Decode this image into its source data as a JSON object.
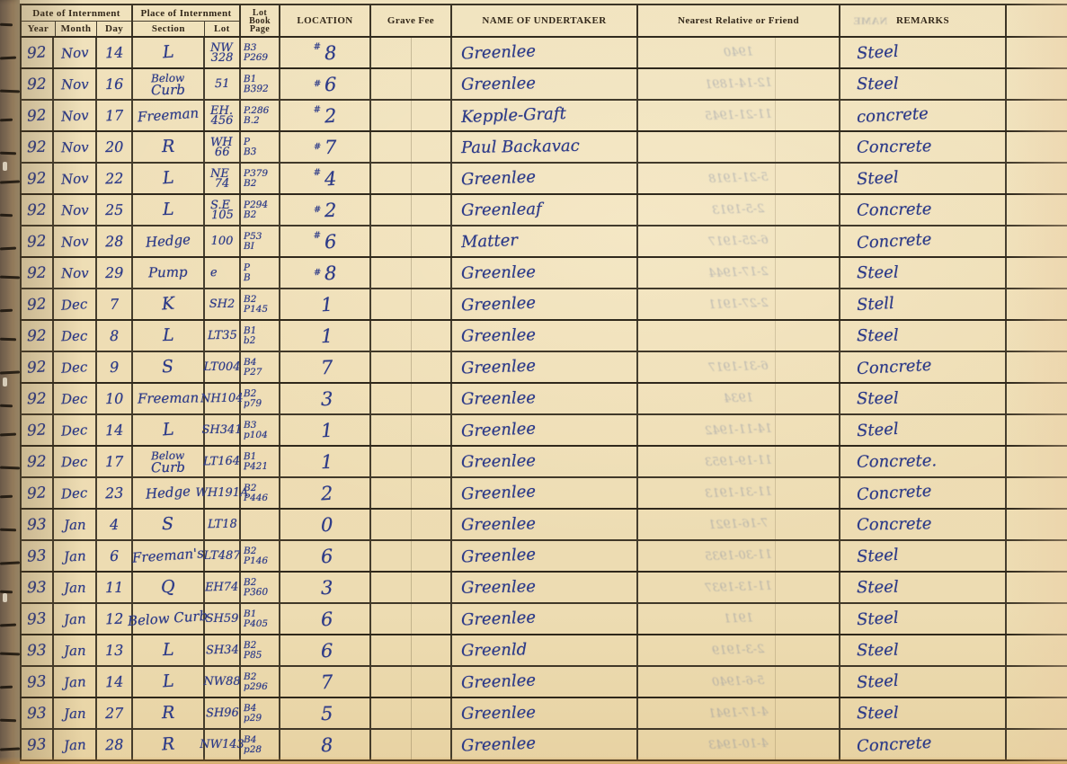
{
  "header": {
    "date_group": "Date of Internment",
    "year": "Year",
    "month": "Month",
    "day": "Day",
    "place_group": "Place of Internment",
    "section": "Section",
    "lot": "Lot",
    "lot_book_page": [
      "Lot",
      "Book",
      "Page"
    ],
    "location": "LOCATION",
    "grave_fee": "Grave Fee",
    "undertaker": "NAME OF UNDERTAKER",
    "relative": "Nearest Relative or Friend",
    "remarks": "REMARKS",
    "bleed_name": "NAME"
  },
  "ink_color": "#2c3a88",
  "paper_color": "#eeddb4",
  "rows": [
    {
      "year": "92",
      "month": "Nov",
      "day": "14",
      "section_top": "",
      "section": "L",
      "lot_top": "NW",
      "lot": "328",
      "book_top": "B3",
      "book": "P269",
      "loc_mark": "#",
      "location": "8",
      "undertaker": "Greenlee",
      "remarks": "Steel",
      "bleed": "1940"
    },
    {
      "year": "92",
      "month": "Nov",
      "day": "16",
      "section_top": "Below",
      "section": "Curb",
      "lot_top": "",
      "lot": "51",
      "book_top": "B1",
      "book": "B392",
      "loc_mark": "#",
      "location": "6",
      "undertaker": "Greenlee",
      "remarks": "Steel",
      "bleed": "12-14-1891"
    },
    {
      "year": "92",
      "month": "Nov",
      "day": "17",
      "section_top": "",
      "section": "Freeman",
      "lot_top": "EH.",
      "lot": "456",
      "book_top": "P.286",
      "book": "B.2",
      "loc_mark": "#",
      "location": "2",
      "undertaker": "Kepple-Graft",
      "remarks": "concrete",
      "bleed": "11-21-1945"
    },
    {
      "year": "92",
      "month": "Nov",
      "day": "20",
      "section_top": "",
      "section": "R",
      "lot_top": "WH",
      "lot": "66",
      "book_top": "P",
      "book": "B3",
      "loc_mark": "#",
      "location": "7",
      "undertaker": "Paul Backavac",
      "remarks": "Concrete",
      "bleed": ""
    },
    {
      "year": "92",
      "month": "Nov",
      "day": "22",
      "section_top": "",
      "section": "L",
      "lot_top": "NE",
      "lot": "74",
      "book_top": "P379",
      "book": "B2",
      "loc_mark": "#",
      "location": "4",
      "undertaker": "Greenlee",
      "remarks": "Steel",
      "bleed": "5-21-1918"
    },
    {
      "year": "92",
      "month": "Nov",
      "day": "25",
      "section_top": "",
      "section": "L",
      "lot_top": "S.E",
      "lot": "105",
      "book_top": "P294",
      "book": "B2",
      "loc_mark": "#",
      "location": "2",
      "undertaker": "Greenleaf",
      "remarks": "Concrete",
      "bleed": "2-5-1913"
    },
    {
      "year": "92",
      "month": "Nov",
      "day": "28",
      "section_top": "",
      "section": "Hedge",
      "lot_top": "",
      "lot": "100",
      "book_top": "P53",
      "book": "BI",
      "loc_mark": "#",
      "location": "6",
      "undertaker": "Matter",
      "remarks": "Concrete",
      "bleed": "6-25-1917"
    },
    {
      "year": "92",
      "month": "Nov",
      "day": "29",
      "section_top": "",
      "section": "Pump",
      "lot_top": "e",
      "lot": "",
      "book_top": "P",
      "book": "B",
      "loc_mark": "#",
      "location": "8",
      "undertaker": "Greenlee",
      "remarks": "Steel",
      "bleed": "2-17-1944"
    },
    {
      "year": "92",
      "month": "Dec",
      "day": "7",
      "section_top": "",
      "section": "K",
      "lot_top": "",
      "lot": "SH2",
      "book_top": "B2",
      "book": "P145",
      "loc_mark": "",
      "location": "1",
      "undertaker": "Greenlee",
      "remarks": "Stell",
      "bleed": "2-27-1911"
    },
    {
      "year": "92",
      "month": "Dec",
      "day": "8",
      "section_top": "",
      "section": "L",
      "lot_top": "",
      "lot": "LT35",
      "book_top": "B1",
      "book": "b2",
      "loc_mark": "",
      "location": "1",
      "undertaker": "Greenlee",
      "remarks": "Steel",
      "bleed": ""
    },
    {
      "year": "92",
      "month": "Dec",
      "day": "9",
      "section_top": "",
      "section": "S",
      "lot_top": "",
      "lot": "LT004",
      "book_top": "B4",
      "book": "P27",
      "loc_mark": "",
      "location": "7",
      "undertaker": "Greenlee",
      "remarks": "Concrete",
      "bleed": "6-31-1917"
    },
    {
      "year": "92",
      "month": "Dec",
      "day": "10",
      "section_top": "",
      "section": "Freeman",
      "lot_top": "",
      "lot": "NH104",
      "book_top": "B2",
      "book": "p79",
      "loc_mark": "",
      "location": "3",
      "undertaker": "Greenlee",
      "remarks": "Steel",
      "bleed": "1934"
    },
    {
      "year": "92",
      "month": "Dec",
      "day": "14",
      "section_top": "",
      "section": "L",
      "lot_top": "",
      "lot": "SH341",
      "book_top": "B3",
      "book": "p104",
      "loc_mark": "",
      "location": "1",
      "undertaker": "Greenlee",
      "remarks": "Steel",
      "bleed": "14-11-1942"
    },
    {
      "year": "92",
      "month": "Dec",
      "day": "17",
      "section_top": "Below",
      "section": "Curb",
      "lot_top": "",
      "lot": "LT164",
      "book_top": "B1",
      "book": "P421",
      "loc_mark": "",
      "location": "1",
      "undertaker": "Greenlee",
      "remarks": "Concrete.",
      "bleed": "11-19-1953"
    },
    {
      "year": "92",
      "month": "Dec",
      "day": "23",
      "section_top": "",
      "section": "Hedge",
      "lot_top": "",
      "lot": "WH191A",
      "book_top": "B2",
      "book": "P446",
      "loc_mark": "",
      "location": "2",
      "undertaker": "Greenlee",
      "remarks": "Concrete",
      "bleed": "11-31-1913"
    },
    {
      "year": "93",
      "month": "Jan",
      "day": "4",
      "section_top": "",
      "section": "S",
      "lot_top": "",
      "lot": "LT18",
      "book_top": "",
      "book": "",
      "loc_mark": "",
      "location": "0",
      "undertaker": "Greenlee",
      "remarks": "Concrete",
      "bleed": "7-16-1921"
    },
    {
      "year": "93",
      "month": "Jan",
      "day": "6",
      "section_top": "",
      "section": "Freeman's",
      "lot_top": "",
      "lot": "LT487",
      "book_top": "B2",
      "book": "P146",
      "loc_mark": "",
      "location": "6",
      "undertaker": "Greenlee",
      "remarks": "Steel",
      "bleed": "11-30-1935"
    },
    {
      "year": "93",
      "month": "Jan",
      "day": "11",
      "section_top": "",
      "section": "Q",
      "lot_top": "",
      "lot": "EH74",
      "book_top": "B2",
      "book": "P360",
      "loc_mark": "",
      "location": "3",
      "undertaker": "Greenlee",
      "remarks": "Steel",
      "bleed": "11-13-1937"
    },
    {
      "year": "93",
      "month": "Jan",
      "day": "12",
      "section_top": "",
      "section": "Below Curb",
      "lot_top": "",
      "lot": "SH59",
      "book_top": "B1",
      "book": "P405",
      "loc_mark": "",
      "location": "6",
      "undertaker": "Greenlee",
      "remarks": "Steel",
      "bleed": "1911"
    },
    {
      "year": "93",
      "month": "Jan",
      "day": "13",
      "section_top": "",
      "section": "L",
      "lot_top": "",
      "lot": "SH34",
      "book_top": "B2",
      "book": "P85",
      "loc_mark": "",
      "location": "6",
      "undertaker": "Greenld",
      "remarks": "Steel",
      "bleed": "2-3-1919"
    },
    {
      "year": "93",
      "month": "Jan",
      "day": "14",
      "section_top": "",
      "section": "L",
      "lot_top": "",
      "lot": "NW88",
      "book_top": "B2",
      "book": "p296",
      "loc_mark": "",
      "location": "7",
      "undertaker": "Greenlee",
      "remarks": "Steel",
      "bleed": "5-6-1940"
    },
    {
      "year": "93",
      "month": "Jan",
      "day": "27",
      "section_top": "",
      "section": "R",
      "lot_top": "",
      "lot": "SH96",
      "book_top": "B4",
      "book": "p29",
      "loc_mark": "",
      "location": "5",
      "undertaker": "Greenlee",
      "remarks": "Steel",
      "bleed": "4-17-1941"
    },
    {
      "year": "93",
      "month": "Jan",
      "day": "28",
      "section_top": "",
      "section": "R",
      "lot_top": "",
      "lot": "NW143",
      "book_top": "B4",
      "book": "p28",
      "loc_mark": "",
      "location": "8",
      "undertaker": "Greenlee",
      "remarks": "Concrete",
      "bleed": "4-10-1943"
    }
  ]
}
